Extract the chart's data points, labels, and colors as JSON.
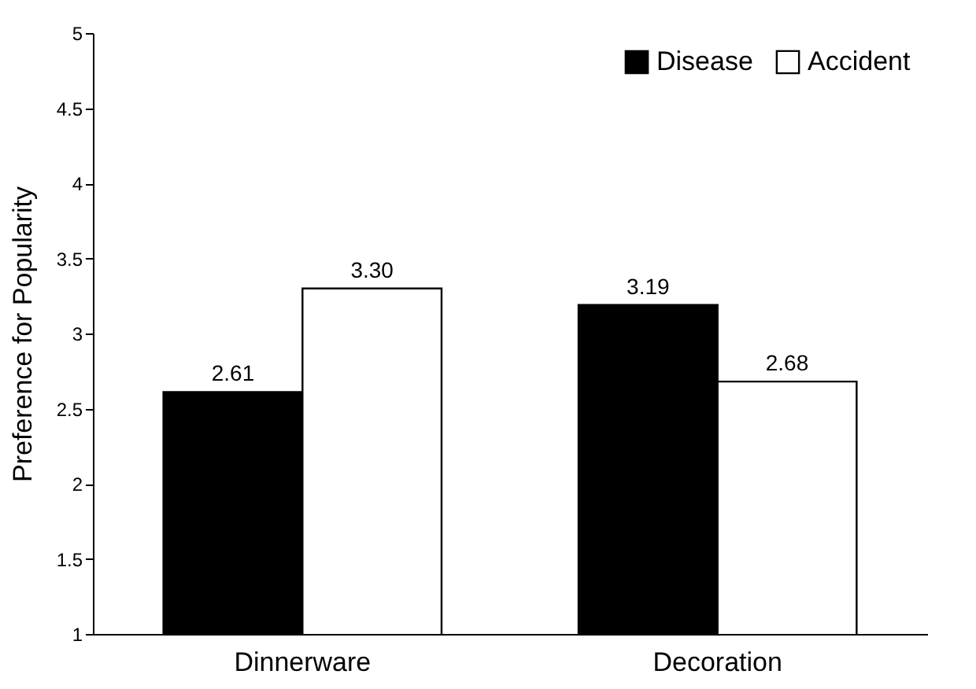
{
  "chart_data": {
    "type": "bar",
    "ylabel": "Preference for Popularity",
    "categories": [
      "Dinnerware",
      "Decoration"
    ],
    "series": [
      {
        "name": "Disease",
        "color": "#000000",
        "values": [
          2.61,
          3.19
        ],
        "value_labels": [
          "2.61",
          "3.19"
        ]
      },
      {
        "name": "Accident",
        "color": "#ffffff",
        "values": [
          3.3,
          2.68
        ],
        "value_labels": [
          "3.30",
          "2.68"
        ]
      }
    ],
    "ylim": [
      1,
      5
    ],
    "yticks": [
      1,
      1.5,
      2,
      2.5,
      3,
      3.5,
      4,
      4.5,
      5
    ],
    "legend": "top right",
    "grid": false
  }
}
